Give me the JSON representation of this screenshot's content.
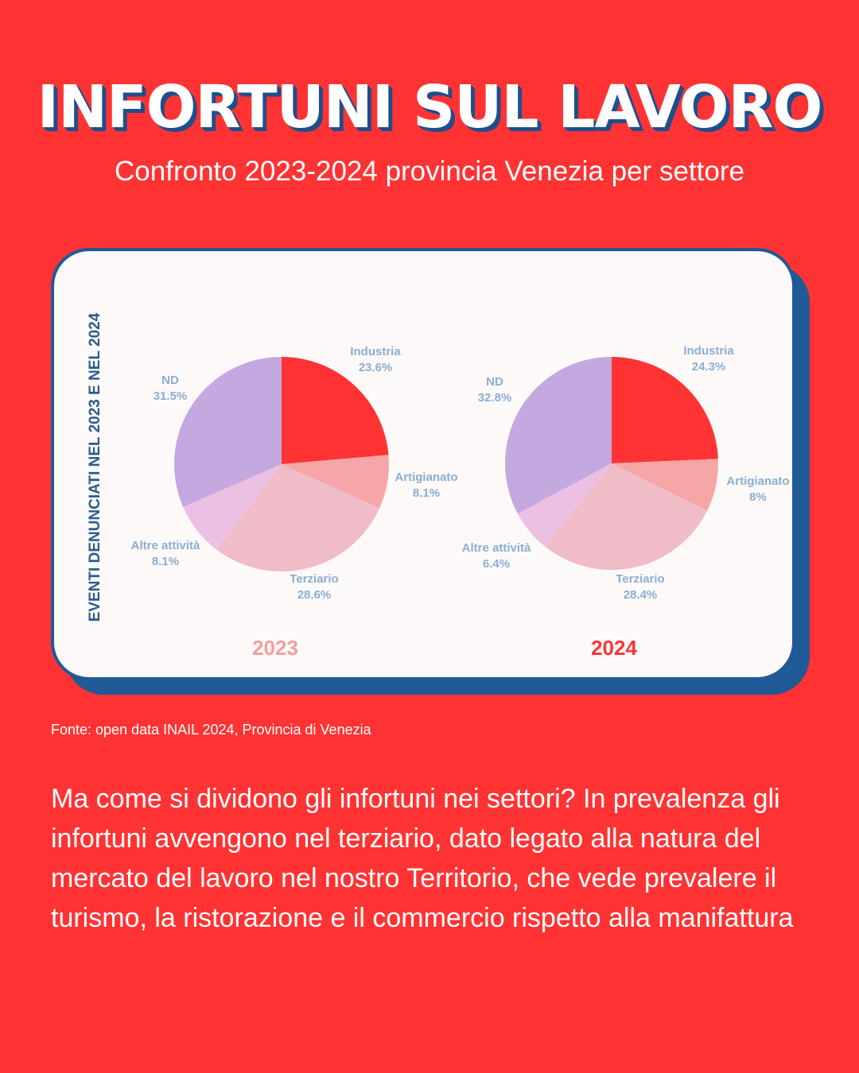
{
  "header": {
    "title": "INFORTUNI SUL LAVORO",
    "subtitle": "Confronto 2023-2024 provincia Venezia per settore"
  },
  "chart_data": [
    {
      "type": "pie",
      "year_label": "2023",
      "year_color": "#f2a0a0",
      "ylabel": "EVENTI DENUNCIATI NEL 2023 E NEL 2024",
      "slices": [
        {
          "name": "Industria",
          "value": 23.6,
          "label": "23.6%",
          "color": "#ff3333"
        },
        {
          "name": "Artigianato",
          "value": 8.1,
          "label": "8.1%",
          "color": "#f6a6a6"
        },
        {
          "name": "Terziario",
          "value": 28.6,
          "label": "28.6%",
          "color": "#f0bcc8"
        },
        {
          "name": "Altre attività",
          "value": 8.1,
          "label": "8.1%",
          "color": "#ecc0e2"
        },
        {
          "name": "ND",
          "value": 31.5,
          "label": "31.5%",
          "color": "#c4a8e0"
        }
      ]
    },
    {
      "type": "pie",
      "year_label": "2024",
      "year_color": "#ff3333",
      "slices": [
        {
          "name": "Industria",
          "value": 24.3,
          "label": "24.3%",
          "color": "#ff3333"
        },
        {
          "name": "Artigianato",
          "value": 8,
          "label": "8%",
          "color": "#f6a6a6"
        },
        {
          "name": "Terziario",
          "value": 28.4,
          "label": "28.4%",
          "color": "#f0bcc8"
        },
        {
          "name": "Altre attività",
          "value": 6.4,
          "label": "6.4%",
          "color": "#ecc0e2"
        },
        {
          "name": "ND",
          "value": 32.8,
          "label": "32.8%",
          "color": "#c4a8e0"
        }
      ]
    }
  ],
  "source": "Fonte: open data INAIL 2024, Provincia di Venezia",
  "body": {
    "paragraph": "Ma come si dividono gli infortuni nei settori? In prevalenza gli infortuni avvengono nel terziario, dato legato alla natura del mercato del lavoro nel nostro Territorio, che vede prevalere il turismo, la ristorazione e il commercio rispetto alla manifattura"
  },
  "colors": {
    "background": "#ff3333",
    "card_border": "#1f5a96",
    "label_blue": "#8aaed2"
  }
}
